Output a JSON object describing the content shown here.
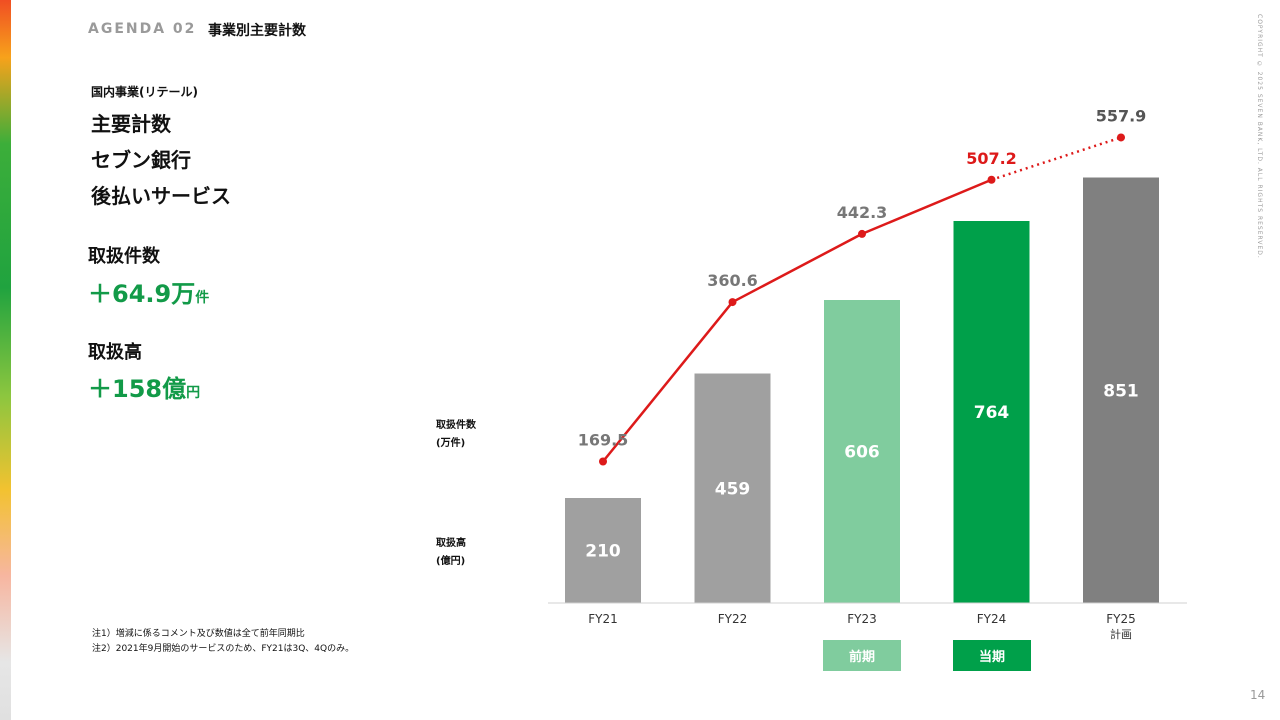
{
  "header": {
    "agenda": "AGENDA 02",
    "title": "事業別主要計数"
  },
  "copyright": "COPYRIGHT © 2025  SEVEN BANK, LTD. ALL RIGHTS RESERVED.",
  "page_number": "14",
  "left_panel": {
    "subtitle": "国内事業(リテール)",
    "heading1": "主要計数",
    "heading2": "セブン銀行",
    "heading3": "後払いサービス",
    "kpi_count_label": "取扱件数",
    "kpi_count_value": "＋64.9万",
    "kpi_count_unit": "件",
    "kpi_amount_label": "取扱高",
    "kpi_amount_value": "＋158億",
    "kpi_amount_unit": "円"
  },
  "axis_notes": {
    "count_label": "取扱件数",
    "count_unit": "(万件)",
    "amount_label": "取扱高",
    "amount_unit": "(億円)"
  },
  "notes": [
    "注1）増減に係るコメント及び数値は全て前年同期比",
    "注2）2021年9月開始のサービスのため、FY21は3Q、4Qのみ。"
  ],
  "legend": {
    "prev": "前期",
    "curr": "当期"
  },
  "colors": {
    "bar_gray": "#a0a0a0",
    "bar_prev": "#80cc9e",
    "bar_curr": "#00a04a",
    "bar_plan": "#808080",
    "line": "#dd1a1a",
    "label_gray": "#777777",
    "kpi_green": "#129a48"
  },
  "chart_data": {
    "type": "bar",
    "categories": [
      "FY21",
      "FY22",
      "FY23",
      "FY24",
      "FY25"
    ],
    "category_sublabels": [
      "",
      "",
      "",
      "",
      "計画"
    ],
    "series": [
      {
        "name": "取扱高(億円)",
        "type": "bar",
        "values": [
          210,
          459,
          606,
          764,
          851
        ]
      },
      {
        "name": "取扱件数(万件)",
        "type": "line",
        "values": [
          169.5,
          360.6,
          442.3,
          507.2,
          557.9
        ],
        "last_segment": "dotted"
      }
    ],
    "bar_labels": [
      "210",
      "459",
      "606",
      "764",
      "851"
    ],
    "line_labels": [
      "169.5",
      "360.6",
      "442.3",
      "507.2",
      "557.9"
    ],
    "grid": false
  }
}
